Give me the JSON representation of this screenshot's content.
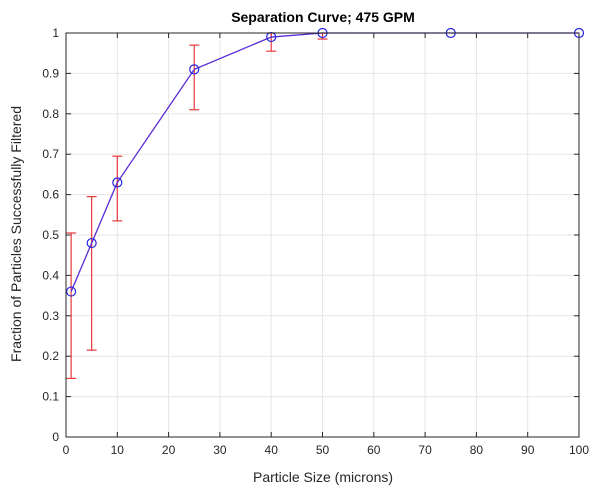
{
  "chart_data": {
    "type": "line",
    "title": "Separation Curve; 475 GPM",
    "xlabel": "Particle Size (microns)",
    "ylabel": "Fraction of Particles Successfully Filtered",
    "xlim": [
      0,
      100
    ],
    "ylim": [
      0,
      1
    ],
    "x_ticks": [
      0,
      10,
      20,
      30,
      40,
      50,
      60,
      70,
      80,
      90,
      100
    ],
    "y_ticks": [
      0,
      0.1,
      0.2,
      0.3,
      0.4,
      0.5,
      0.6,
      0.7,
      0.8,
      0.9,
      1
    ],
    "grid": true,
    "series": [
      {
        "x": [
          1,
          5,
          10,
          25,
          40,
          50,
          75,
          100
        ],
        "y": [
          0.36,
          0.48,
          0.63,
          0.91,
          0.99,
          1.0,
          1.0,
          1.0
        ],
        "y_err_low": [
          0.145,
          0.215,
          0.535,
          0.81,
          0.955,
          0.985,
          1.0,
          1.0
        ],
        "y_err_high": [
          0.505,
          0.595,
          0.695,
          0.97,
          1.0,
          1.0,
          1.0,
          1.0
        ],
        "marker": "circle",
        "line_color": "#5A2BD6",
        "marker_color": "#2424E0",
        "errorbar_color": "#E8383D"
      }
    ]
  }
}
